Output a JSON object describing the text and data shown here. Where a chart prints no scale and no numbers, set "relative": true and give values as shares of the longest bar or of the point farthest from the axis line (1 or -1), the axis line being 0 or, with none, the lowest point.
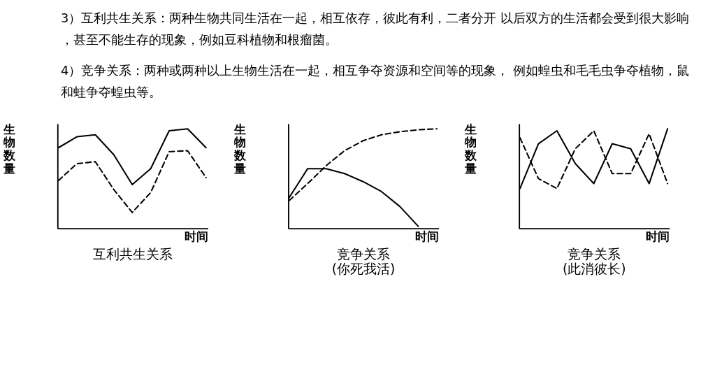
{
  "chart_data": [
    {
      "type": "other",
      "annotations": [
        "3）互利共生关系：两种生物共同生活在一起，相互依存，彼此有利，二者分开 以后双方的生活都会受到很大影响，甚至不能生存的现象，例如豆科植物和根瘤菌。",
        "4）竞争关系：两种或两种以上生物生活在一起，相互争夺资源和空间等的现象， 例如蝗虫和毛毛虫争夺植物，鼠和蛙争夺蝗虫等。"
      ]
    },
    {
      "type": "line",
      "relative": true,
      "title": "互利共生关系",
      "xlabel": "时间",
      "ylabel": "生物数量",
      "legend": false,
      "marker": "none",
      "categories": [
        null,
        null,
        null,
        null,
        null,
        null,
        null,
        null,
        null
      ],
      "series": [
        {
          "color": "#000000",
          "line_style": "solid",
          "values": [
            0.81,
            0.92,
            0.94,
            0.74,
            0.44,
            0.6,
            0.98,
            1.0,
            0.81
          ]
        },
        {
          "color": "#000000",
          "line_style": "dashed",
          "values": [
            0.48,
            0.65,
            0.67,
            0.39,
            0.16,
            0.36,
            0.77,
            0.78,
            0.51
          ]
        }
      ]
    },
    {
      "type": "line",
      "relative": true,
      "title": "竞争关系",
      "subtitle": "(你死我活)",
      "xlabel": "时间",
      "ylabel": "生物数量",
      "legend": false,
      "marker": "none",
      "categories": [
        null,
        null,
        null,
        null,
        null,
        null,
        null,
        null,
        null
      ],
      "series": [
        {
          "color": "#000000",
          "line_style": "solid",
          "values": [
            0.31,
            0.6,
            0.6,
            0.55,
            0.47,
            0.37,
            0.22,
            0.02,
            null
          ]
        },
        {
          "color": "#000000",
          "line_style": "dashed",
          "values": [
            0.28,
            0.45,
            0.63,
            0.78,
            0.88,
            0.94,
            0.97,
            0.99,
            1.0
          ]
        }
      ]
    },
    {
      "type": "line",
      "relative": true,
      "title": "竞争关系",
      "subtitle": "(此消彼长)",
      "xlabel": "时间",
      "ylabel": "生物数量",
      "legend": false,
      "marker": "none",
      "categories": [
        null,
        null,
        null,
        null,
        null,
        null,
        null,
        null,
        null
      ],
      "series": [
        {
          "color": "#000000",
          "line_style": "solid",
          "values": [
            0.4,
            0.85,
            0.98,
            0.65,
            0.45,
            0.85,
            0.8,
            0.45,
            1.0
          ]
        },
        {
          "color": "#000000",
          "line_style": "dashed",
          "values": [
            0.91,
            0.5,
            0.4,
            0.8,
            0.98,
            0.55,
            0.55,
            0.95,
            0.45
          ]
        }
      ]
    }
  ]
}
